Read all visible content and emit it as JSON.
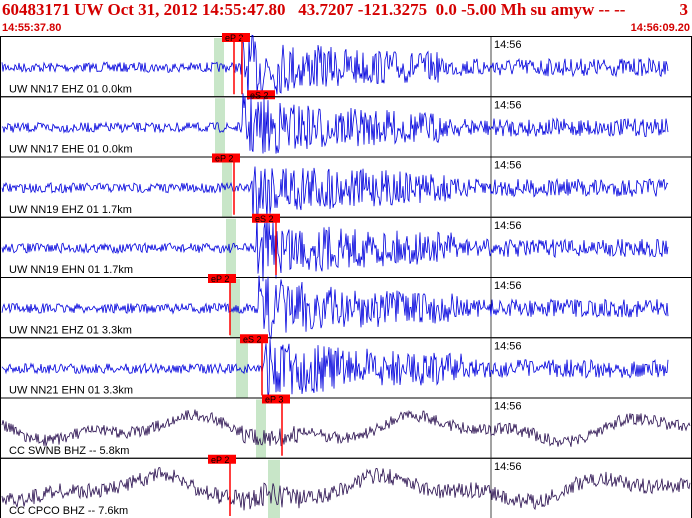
{
  "header": {
    "title": "60483171 UW Oct 31, 2012 14:55:47.80   43.7207 -121.3275  0.0 -5.00 Mh su amyw -- --",
    "number": "3",
    "time_start": "14:55:37.80",
    "time_end": "14:56:09.20"
  },
  "colors": {
    "header_text": "#d40000",
    "trace_short_period": "#0000dd",
    "trace_broadband": "#2a1050",
    "pick_flag": "#ff0000",
    "pick_window": "#c8e6c8"
  },
  "time_marker": "14:56",
  "traces": [
    {
      "label": "UW NN17 EHZ 01 0.0km",
      "picks": [
        {
          "phase": "eP 2"
        },
        {
          "phase": "eS 2"
        }
      ],
      "kind": "sp"
    },
    {
      "label": "UW NN17 EHE 01 0.0km",
      "picks": [],
      "kind": "sp"
    },
    {
      "label": "UW NN19 EHZ 01 1.7km",
      "picks": [
        {
          "phase": "eP 2"
        }
      ],
      "kind": "sp"
    },
    {
      "label": "UW NN19 EHN 01 1.7km",
      "picks": [
        {
          "phase": "eS 2"
        }
      ],
      "kind": "sp"
    },
    {
      "label": "UW NN21 EHZ 01 3.3km",
      "picks": [
        {
          "phase": "eP 2"
        }
      ],
      "kind": "sp"
    },
    {
      "label": "UW NN21 EHN 01 3.3km",
      "picks": [
        {
          "phase": "eS 2"
        }
      ],
      "kind": "sp"
    },
    {
      "label": "CC SWNB BHZ -- 5.8km",
      "picks": [
        {
          "phase": "eP 3"
        }
      ],
      "kind": "bb"
    },
    {
      "label": "CC CPCO BHZ -- 7.6km",
      "picks": [
        {
          "phase": "eP 2"
        }
      ],
      "kind": "bb"
    }
  ]
}
